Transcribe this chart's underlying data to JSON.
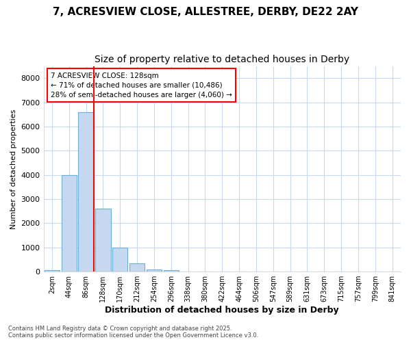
{
  "title_line1": "7, ACRESVIEW CLOSE, ALLESTREE, DERBY, DE22 2AY",
  "title_line2": "Size of property relative to detached houses in Derby",
  "xlabel": "Distribution of detached houses by size in Derby",
  "ylabel": "Number of detached properties",
  "categories": [
    "2sqm",
    "44sqm",
    "86sqm",
    "128sqm",
    "170sqm",
    "212sqm",
    "254sqm",
    "296sqm",
    "338sqm",
    "380sqm",
    "422sqm",
    "464sqm",
    "506sqm",
    "547sqm",
    "589sqm",
    "631sqm",
    "673sqm",
    "715sqm",
    "757sqm",
    "799sqm",
    "841sqm"
  ],
  "values": [
    50,
    4000,
    6600,
    2600,
    1000,
    330,
    100,
    50,
    0,
    0,
    0,
    0,
    0,
    0,
    0,
    0,
    0,
    0,
    0,
    0,
    0
  ],
  "bar_color": "#c5d8f0",
  "bar_edge_color": "#6baed6",
  "marker_index": 2,
  "marker_color": "red",
  "ylim": [
    0,
    8500
  ],
  "yticks": [
    0,
    1000,
    2000,
    3000,
    4000,
    5000,
    6000,
    7000,
    8000
  ],
  "annotation_title": "7 ACRESVIEW CLOSE: 128sqm",
  "annotation_line1": "← 71% of detached houses are smaller (10,486)",
  "annotation_line2": "28% of semi-detached houses are larger (4,060) →",
  "annotation_box_color": "red",
  "footer_line1": "Contains HM Land Registry data © Crown copyright and database right 2025.",
  "footer_line2": "Contains public sector information licensed under the Open Government Licence v3.0.",
  "background_color": "#ffffff",
  "grid_color": "#c8d8f0",
  "title_fontsize": 11,
  "subtitle_fontsize": 10
}
